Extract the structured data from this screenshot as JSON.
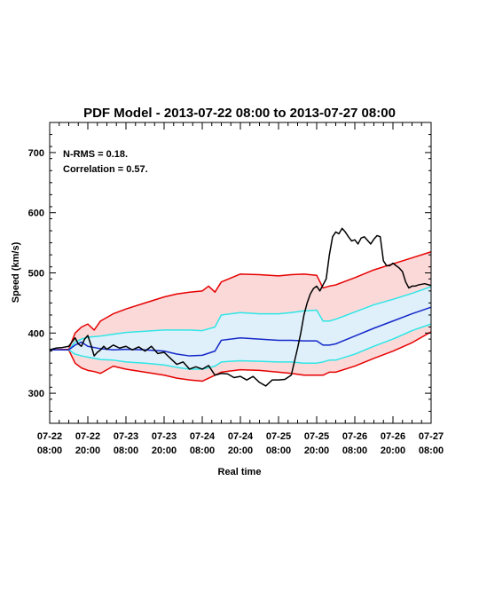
{
  "chart_data": {
    "type": "line",
    "title": "PDF Model - 2013-07-22 08:00 to 2013-07-27 08:00",
    "xlabel": "Real time",
    "ylabel": "Speed (km/s)",
    "xlim": [
      0,
      120
    ],
    "ylim": [
      250,
      750
    ],
    "x_unit": "hours from 2013-07-22 08:00",
    "y_ticks": [
      300,
      400,
      500,
      600,
      700
    ],
    "x_ticks": [
      {
        "x": 0,
        "line1": "07-22",
        "line2": "08:00"
      },
      {
        "x": 12,
        "line1": "07-22",
        "line2": "20:00"
      },
      {
        "x": 24,
        "line1": "07-23",
        "line2": "08:00"
      },
      {
        "x": 36,
        "line1": "07-23",
        "line2": "20:00"
      },
      {
        "x": 48,
        "line1": "07-24",
        "line2": "08:00"
      },
      {
        "x": 60,
        "line1": "07-24",
        "line2": "20:00"
      },
      {
        "x": 72,
        "line1": "07-25",
        "line2": "08:00"
      },
      {
        "x": 84,
        "line1": "07-25",
        "line2": "20:00"
      },
      {
        "x": 96,
        "line1": "07-26",
        "line2": "08:00"
      },
      {
        "x": 108,
        "line1": "07-26",
        "line2": "20:00"
      },
      {
        "x": 120,
        "line1": "07-27",
        "line2": "08:00"
      }
    ],
    "annotations": [
      "N-RMS = 0.18.",
      "Correlation = 0.57."
    ],
    "colors": {
      "observed": "#000000",
      "median": "#1428c8",
      "inner_band_edge": "#2ee6e6",
      "inner_band_fill": "#dff0fb",
      "outer_band_edge": "#e60000",
      "outer_band_fill": "#fcd9d9"
    },
    "grid": false,
    "series": {
      "observed": {
        "x": [
          0,
          2,
          4,
          6,
          7,
          8,
          9,
          10,
          11,
          12,
          13,
          14,
          15,
          16,
          17,
          18,
          20,
          22,
          24,
          26,
          28,
          30,
          32,
          34,
          36,
          38,
          40,
          42,
          44,
          46,
          48,
          50,
          52,
          54,
          56,
          58,
          60,
          62,
          64,
          66,
          68,
          70,
          72,
          74,
          76,
          78,
          79,
          80,
          81,
          82,
          83,
          84,
          85,
          86,
          87,
          88,
          89,
          90,
          91,
          92,
          93,
          94,
          95,
          96,
          97,
          98,
          99,
          100,
          101,
          102,
          103,
          104,
          105,
          106,
          107,
          108,
          109,
          110,
          111,
          112,
          113,
          114,
          115,
          116,
          118,
          120
        ],
        "y": [
          372,
          375,
          376,
          378,
          385,
          392,
          382,
          378,
          390,
          396,
          380,
          362,
          368,
          372,
          378,
          373,
          380,
          375,
          378,
          372,
          377,
          370,
          378,
          366,
          368,
          358,
          348,
          352,
          340,
          344,
          340,
          346,
          330,
          333,
          332,
          326,
          328,
          322,
          328,
          318,
          312,
          322,
          322,
          323,
          330,
          375,
          400,
          430,
          450,
          465,
          474,
          478,
          470,
          480,
          490,
          530,
          560,
          568,
          565,
          574,
          568,
          560,
          553,
          555,
          548,
          558,
          560,
          554,
          548,
          556,
          562,
          560,
          520,
          512,
          512,
          516,
          512,
          508,
          502,
          485,
          475,
          478,
          478,
          480,
          482,
          479
        ]
      },
      "median": {
        "x": [
          0,
          6,
          8,
          10,
          12,
          14,
          16,
          20,
          24,
          30,
          36,
          40,
          44,
          48,
          52,
          54,
          60,
          66,
          72,
          76,
          80,
          84,
          86,
          88,
          90,
          96,
          102,
          108,
          114,
          120
        ],
        "y": [
          372,
          372,
          380,
          385,
          378,
          376,
          374,
          372,
          373,
          372,
          370,
          365,
          362,
          363,
          370,
          388,
          392,
          390,
          388,
          388,
          387,
          387,
          380,
          380,
          382,
          395,
          408,
          420,
          432,
          443
        ]
      },
      "inner_upper": {
        "x": [
          0,
          6,
          8,
          10,
          12,
          14,
          16,
          20,
          24,
          30,
          36,
          40,
          44,
          48,
          52,
          54,
          60,
          66,
          72,
          76,
          80,
          84,
          86,
          88,
          90,
          96,
          102,
          108,
          114,
          120
        ],
        "y": [
          372,
          372,
          385,
          390,
          393,
          394,
          395,
          398,
          401,
          403,
          405,
          405,
          405,
          404,
          410,
          430,
          434,
          432,
          432,
          434,
          437,
          438,
          420,
          420,
          423,
          435,
          447,
          456,
          466,
          477
        ]
      },
      "inner_lower": {
        "x": [
          0,
          6,
          8,
          10,
          12,
          14,
          16,
          20,
          24,
          30,
          36,
          40,
          44,
          48,
          52,
          54,
          60,
          66,
          72,
          76,
          80,
          84,
          86,
          88,
          90,
          96,
          102,
          108,
          114,
          120
        ],
        "y": [
          372,
          372,
          365,
          362,
          360,
          358,
          356,
          355,
          352,
          350,
          347,
          343,
          340,
          340,
          345,
          352,
          354,
          353,
          352,
          352,
          350,
          350,
          352,
          355,
          355,
          365,
          378,
          390,
          404,
          415
        ]
      },
      "outer_upper": {
        "x": [
          0,
          6,
          8,
          10,
          12,
          14,
          16,
          20,
          24,
          30,
          36,
          40,
          44,
          48,
          50,
          52,
          54,
          60,
          66,
          72,
          76,
          80,
          84,
          86,
          88,
          90,
          96,
          102,
          108,
          114,
          120
        ],
        "y": [
          372,
          373,
          400,
          410,
          415,
          405,
          420,
          432,
          440,
          450,
          460,
          465,
          468,
          470,
          478,
          468,
          485,
          498,
          497,
          495,
          497,
          498,
          496,
          475,
          478,
          480,
          492,
          505,
          515,
          525,
          535
        ]
      },
      "outer_lower": {
        "x": [
          0,
          6,
          8,
          10,
          12,
          14,
          16,
          20,
          24,
          30,
          36,
          40,
          44,
          48,
          52,
          54,
          60,
          66,
          72,
          76,
          80,
          84,
          86,
          88,
          90,
          96,
          102,
          108,
          114,
          120
        ],
        "y": [
          372,
          372,
          350,
          342,
          338,
          336,
          333,
          345,
          340,
          335,
          330,
          325,
          322,
          320,
          330,
          335,
          339,
          338,
          335,
          333,
          330,
          330,
          330,
          335,
          335,
          345,
          358,
          370,
          384,
          402
        ]
      }
    }
  }
}
